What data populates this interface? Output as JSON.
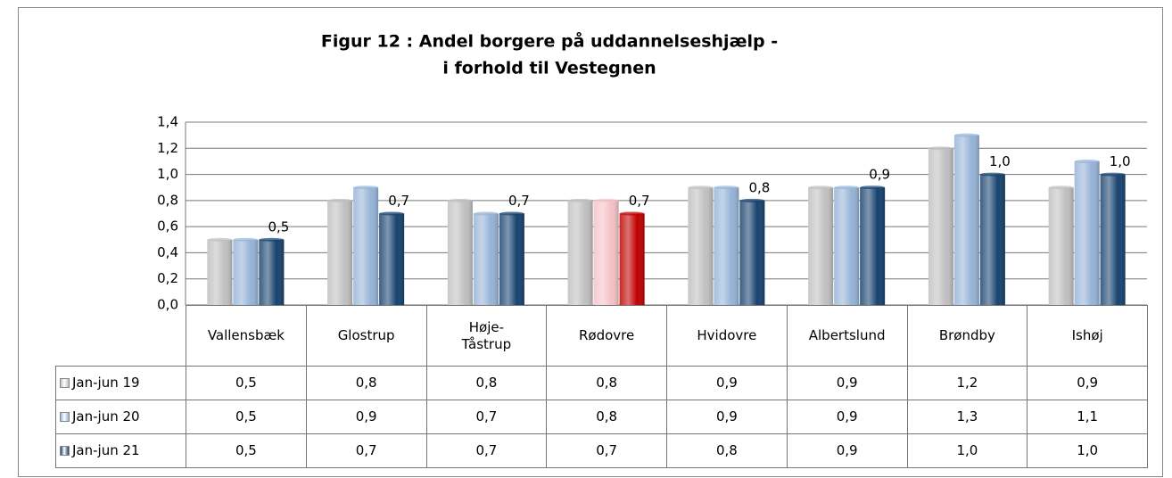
{
  "chart_data": {
    "type": "bar",
    "title": [
      "Figur 12 : Andel borgere på uddannelseshjælp -",
      "i forhold til Vestegnen"
    ],
    "categories": [
      "Vallensbæk",
      "Glostrup",
      "Høje-\nTåstrup",
      "Rødovre",
      "Hvidovre",
      "Albertslund",
      "Brøndby",
      "Ishøj"
    ],
    "series": [
      {
        "name": "Jan-jun 19",
        "color": "#bfbfbf",
        "highlight_color": "#bfbfbf",
        "values": [
          0.5,
          0.8,
          0.8,
          0.8,
          0.9,
          0.9,
          1.2,
          0.9
        ],
        "value_labels": [
          "0,5",
          "0,8",
          "0,8",
          "0,8",
          "0,9",
          "0,9",
          "1,2",
          "0,9"
        ]
      },
      {
        "name": "Jan-jun 20",
        "color": "#95b3d7",
        "highlight_color": "#f4c2c6",
        "values": [
          0.5,
          0.9,
          0.7,
          0.8,
          0.9,
          0.9,
          1.3,
          1.1
        ],
        "value_labels": [
          "0,5",
          "0,9",
          "0,7",
          "0,8",
          "0,9",
          "0,9",
          "1,3",
          "1,1"
        ]
      },
      {
        "name": "Jan-jun 21",
        "color": "#17426e",
        "highlight_color": "#c00000",
        "values": [
          0.5,
          0.7,
          0.7,
          0.7,
          0.8,
          0.9,
          1.0,
          1.0
        ],
        "value_labels": [
          "0,5",
          "0,7",
          "0,7",
          "0,7",
          "0,8",
          "0,9",
          "1,0",
          "1,0"
        ],
        "data_labels": true
      }
    ],
    "highlight_category": "Rødovre",
    "ylim": [
      0,
      1.4
    ],
    "yticks": [
      {
        "value": 0,
        "label": "0,0"
      },
      {
        "value": 0.2,
        "label": "0,2"
      },
      {
        "value": 0.4,
        "label": "0,4"
      },
      {
        "value": 0.6,
        "label": "0,6"
      },
      {
        "value": 0.8,
        "label": "0,8"
      },
      {
        "value": 1.0,
        "label": "1,0"
      },
      {
        "value": 1.2,
        "label": "1,2"
      },
      {
        "value": 1.4,
        "label": "1,4"
      }
    ],
    "grid": true,
    "data_table": true
  }
}
